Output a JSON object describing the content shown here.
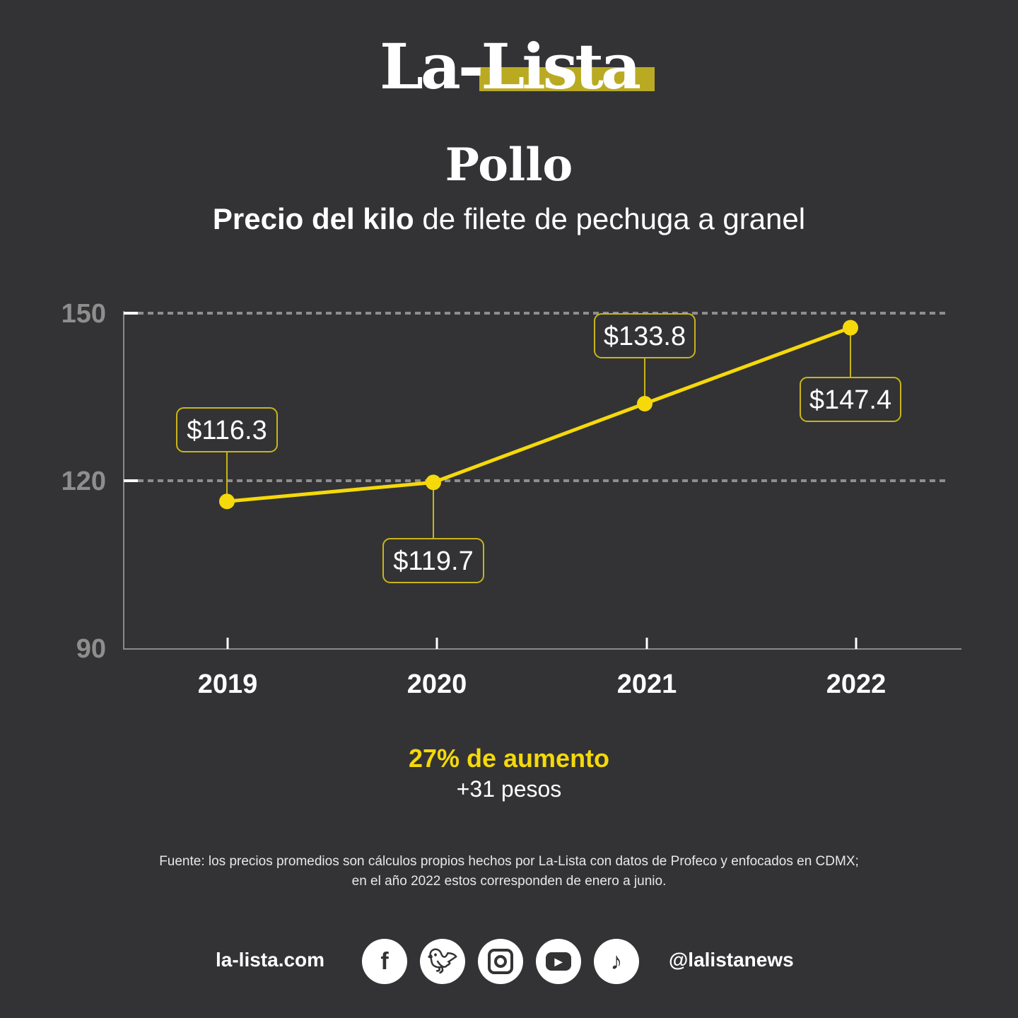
{
  "logo": {
    "text": "La-Lista",
    "accent": "#b9aa22"
  },
  "header": {
    "title": "Pollo",
    "subtitle_bold": "Precio del kilo",
    "subtitle_rest": " de filete de pechuga a granel"
  },
  "chart_data": {
    "type": "line",
    "categories": [
      "2019",
      "2020",
      "2021",
      "2022"
    ],
    "values": [
      116.3,
      119.7,
      133.8,
      147.4
    ],
    "data_labels": [
      "$116.3",
      "$119.7",
      "$133.8",
      "$147.4"
    ],
    "ylim": [
      90,
      150
    ],
    "yticks": [
      "90",
      "120",
      "150"
    ],
    "gridlines": [
      120,
      150
    ],
    "line_color": "#f5d90a"
  },
  "summary": {
    "headline": "27% de aumento",
    "detail": "+31 pesos"
  },
  "source": {
    "line1": "Fuente: los precios promedios son cálculos propios hechos por La-Lista con datos de Profeco y enfocados en CDMX;",
    "line2": "en el año 2022 estos corresponden de enero a junio."
  },
  "footer": {
    "site": "la-lista.com",
    "handle": "@lalistanews",
    "social": [
      "facebook-icon",
      "twitter-icon",
      "instagram-icon",
      "youtube-icon",
      "tiktok-icon"
    ]
  }
}
